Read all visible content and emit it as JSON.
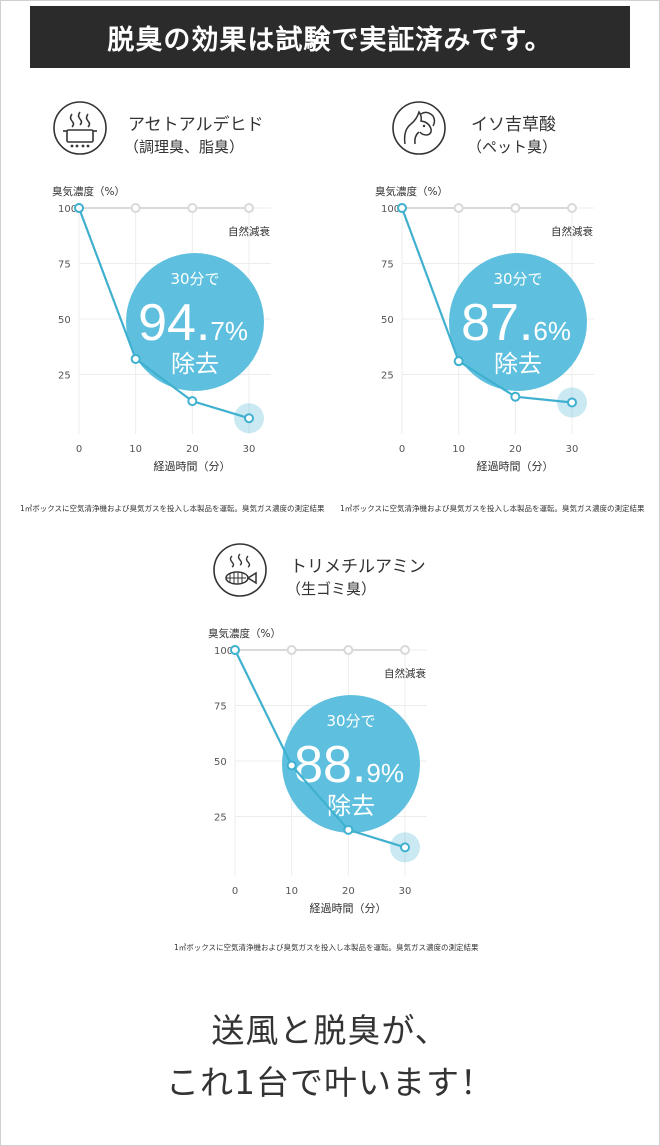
{
  "banner": {
    "title": "脱臭の効果は試験で実証済みです。"
  },
  "charts": [
    {
      "name": "アセトアルデヒド",
      "sub": "（調理臭、脂臭）",
      "icon": "pot-icon",
      "result": {
        "prefix": "30分で",
        "big": "94.",
        "small": "7%",
        "suffix": "除去"
      },
      "footnote": "1㎥ボックスに空気清浄機および臭気ガスを投入し本製品を運転。臭気ガス濃度の測定結果"
    },
    {
      "name": "イソ吉草酸",
      "sub": "（ペット臭）",
      "icon": "pet-icon",
      "result": {
        "prefix": "30分で",
        "big": "87.",
        "small": "6%",
        "suffix": "除去"
      },
      "footnote": "1㎥ボックスに空気清浄機および臭気ガスを投入し本製品を運転。臭気ガス濃度の測定結果"
    },
    {
      "name": "トリメチルアミン",
      "sub": "（生ゴミ臭）",
      "icon": "fish-icon",
      "result": {
        "prefix": "30分で",
        "big": "88.",
        "small": "9%",
        "suffix": "除去"
      },
      "footnote": "1㎥ボックスに空気清浄機および臭気ガスを投入し本製品を運転。臭気ガス濃度の測定結果"
    }
  ],
  "chart_data": [
    {
      "type": "line",
      "ylabel": "臭気濃度（%）",
      "xlabel": "経過時間（分）",
      "x": [
        0,
        10,
        20,
        30
      ],
      "xlim": [
        0,
        30
      ],
      "ylim": [
        0,
        100
      ],
      "yticks": [
        25,
        50,
        75,
        100
      ],
      "xticks": [
        0,
        10,
        20,
        30
      ],
      "grid": true,
      "series": [
        {
          "name": "自然減衰",
          "values": [
            100,
            100,
            100,
            100
          ],
          "color": "#d9d9d9"
        },
        {
          "name": "",
          "values": [
            100,
            32,
            13,
            5.3
          ],
          "color": "#3fb0cf"
        }
      ]
    },
    {
      "type": "line",
      "ylabel": "臭気濃度（%）",
      "xlabel": "経過時間（分）",
      "x": [
        0,
        10,
        20,
        30
      ],
      "xlim": [
        0,
        30
      ],
      "ylim": [
        0,
        100
      ],
      "yticks": [
        25,
        50,
        75,
        100
      ],
      "xticks": [
        0,
        10,
        20,
        30
      ],
      "grid": true,
      "series": [
        {
          "name": "自然減衰",
          "values": [
            100,
            100,
            100,
            100
          ],
          "color": "#d9d9d9"
        },
        {
          "name": "",
          "values": [
            100,
            31,
            15,
            12.4
          ],
          "color": "#3fb0cf"
        }
      ]
    },
    {
      "type": "line",
      "ylabel": "臭気濃度（%）",
      "xlabel": "経過時間（分）",
      "x": [
        0,
        10,
        20,
        30
      ],
      "xlim": [
        0,
        30
      ],
      "ylim": [
        0,
        100
      ],
      "yticks": [
        25,
        50,
        75,
        100
      ],
      "xticks": [
        0,
        10,
        20,
        30
      ],
      "grid": true,
      "series": [
        {
          "name": "自然減衰",
          "values": [
            100,
            100,
            100,
            100
          ],
          "color": "#d9d9d9"
        },
        {
          "name": "",
          "values": [
            100,
            48,
            19,
            11.1
          ],
          "color": "#3fb0cf"
        }
      ]
    }
  ],
  "tagline": {
    "line1": "送風と脱臭が、",
    "line2": "これ1台で叶います！"
  },
  "colors": {
    "accent": "#3fb0cf",
    "bubble": "#5ec0de",
    "banner": "#2b2b2b",
    "grid": "#ececec"
  }
}
